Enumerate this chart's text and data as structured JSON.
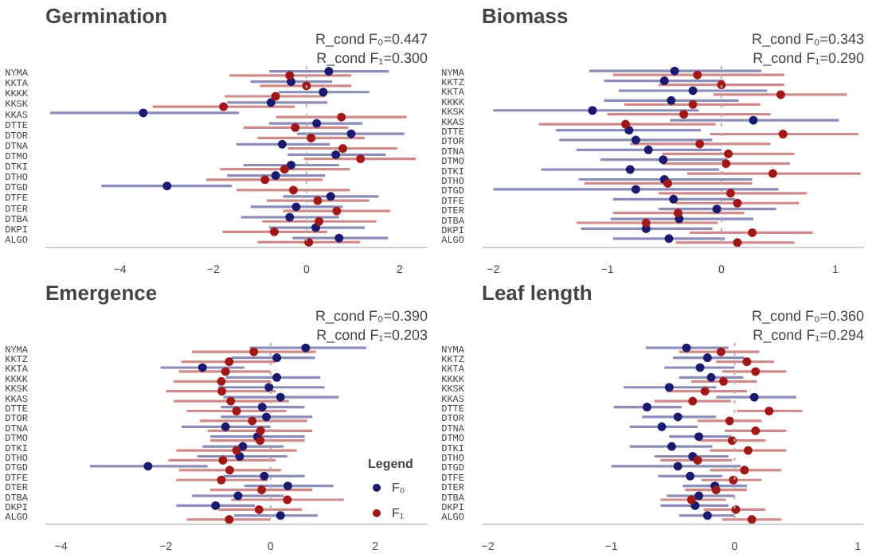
{
  "chart_data": [
    {
      "type": "scatter",
      "orientation": "horizontal",
      "title": "Germination",
      "annotations": [
        "R_cond F₀=0.447",
        "R_cond F₁=0.300"
      ],
      "categories": [
        "NYMA",
        "KKTA",
        "KKKK",
        "KKSK",
        "KKAS",
        "DTTE",
        "DTOR",
        "DTNA",
        "DTMO",
        "DTKI",
        "DTHO",
        "DTGD",
        "DTFE",
        "DTER",
        "DTBA",
        "DKPI",
        "ALGO"
      ],
      "xlim": [
        -5.6,
        2.6
      ],
      "xticks": [
        -4,
        -2,
        0,
        2
      ],
      "grid": false,
      "marker": "circle",
      "legend": false,
      "ref_lines": [
        {
          "axis": "x",
          "value": 0,
          "color": "#b0b0b0",
          "line_style": "dotted"
        }
      ],
      "series": [
        {
          "color": "#1a1a6e",
          "values": [
            0.48,
            -0.33,
            0.36,
            -0.76,
            -3.5,
            0.22,
            0.96,
            -0.52,
            0.63,
            -0.33,
            -0.66,
            -2.99,
            0.52,
            -0.22,
            -0.36,
            0.2,
            0.7
          ],
          "errors": [
            [
              -0.8,
              1.77
            ],
            [
              -1.2,
              0.55
            ],
            [
              -0.6,
              1.35
            ],
            [
              -1.7,
              0.45
            ],
            [
              -5.5,
              -1.45
            ],
            [
              -0.8,
              1.2
            ],
            [
              -0.2,
              2.1
            ],
            [
              -1.5,
              0.5
            ],
            [
              -0.4,
              1.7
            ],
            [
              -1.35,
              0.7
            ],
            [
              -1.7,
              0.4
            ],
            [
              -4.4,
              -1.6
            ],
            [
              -0.5,
              1.55
            ],
            [
              -1.2,
              0.78
            ],
            [
              -1.4,
              0.7
            ],
            [
              -0.8,
              1.25
            ],
            [
              -0.3,
              1.75
            ]
          ]
        },
        {
          "color": "#a01818",
          "values": [
            -0.36,
            0.0,
            -0.66,
            -1.78,
            0.75,
            -0.24,
            0.1,
            0.78,
            1.16,
            -0.47,
            -0.89,
            -0.28,
            0.24,
            0.65,
            0.27,
            -0.69,
            0.05
          ],
          "errors": [
            [
              -1.65,
              0.96
            ],
            [
              -1.0,
              0.96
            ],
            [
              -1.75,
              0.4
            ],
            [
              -3.3,
              -0.25
            ],
            [
              -0.65,
              2.15
            ],
            [
              -1.35,
              0.9
            ],
            [
              -1.05,
              1.25
            ],
            [
              -0.4,
              1.95
            ],
            [
              -0.05,
              2.35
            ],
            [
              -1.85,
              0.93
            ],
            [
              -2.15,
              0.35
            ],
            [
              -1.5,
              0.93
            ],
            [
              -0.85,
              1.35
            ],
            [
              -0.5,
              1.8
            ],
            [
              -0.95,
              1.5
            ],
            [
              -1.8,
              0.45
            ],
            [
              -1.05,
              1.15
            ]
          ]
        }
      ]
    },
    {
      "type": "scatter",
      "orientation": "horizontal",
      "title": "Biomass",
      "annotations": [
        "R_cond F₀=0.343",
        "R_cond F₁=0.290"
      ],
      "categories": [
        "NYMA",
        "KKTZ",
        "KKTA",
        "KKKK",
        "KKSK",
        "KKAS",
        "DTTE",
        "DTOR",
        "DTNA",
        "DTMO",
        "DTKI",
        "DTHO",
        "DTGD",
        "DTFE",
        "DTER",
        "DTBA",
        "DKPI",
        "ALGO"
      ],
      "xlim": [
        -2.1,
        1.25
      ],
      "xticks": [
        -2,
        -1,
        0,
        1
      ],
      "grid": false,
      "marker": "circle",
      "legend": false,
      "ref_lines": [
        {
          "axis": "x",
          "value": 0,
          "color": "#b0b0b0",
          "line_style": "dotted"
        }
      ],
      "series": [
        {
          "color": "#1a1a6e",
          "values": [
            -0.41,
            -0.5,
            -0.25,
            -0.44,
            -1.13,
            0.28,
            -0.81,
            -0.75,
            -0.64,
            -0.51,
            -0.8,
            -0.5,
            -0.75,
            -0.42,
            -0.04,
            -0.37,
            -0.66,
            -0.46
          ],
          "errors": [
            [
              -1.16,
              0.35
            ],
            [
              -1.03,
              0.02
            ],
            [
              -0.9,
              0.4
            ],
            [
              -1.03,
              0.15
            ],
            [
              -2.0,
              -0.2
            ],
            [
              -0.45,
              1.03
            ],
            [
              -1.45,
              -0.18
            ],
            [
              -1.42,
              -0.08
            ],
            [
              -1.27,
              0.0
            ],
            [
              -1.06,
              0.05
            ],
            [
              -1.58,
              -0.02
            ],
            [
              -1.25,
              0.27
            ],
            [
              -2.0,
              0.5
            ],
            [
              -0.95,
              0.12
            ],
            [
              -0.55,
              0.48
            ],
            [
              -0.97,
              0.28
            ],
            [
              -1.23,
              -0.08
            ],
            [
              -0.95,
              0.03
            ]
          ]
        },
        {
          "color": "#a01818",
          "values": [
            -0.21,
            0.0,
            0.52,
            -0.25,
            -0.33,
            -0.84,
            0.54,
            -0.19,
            0.06,
            0.04,
            0.45,
            -0.47,
            0.08,
            0.14,
            -0.38,
            -0.66,
            0.27,
            0.14
          ],
          "errors": [
            [
              -0.95,
              0.55
            ],
            [
              -0.55,
              0.55
            ],
            [
              -0.07,
              1.1
            ],
            [
              -0.85,
              0.34
            ],
            [
              -1.0,
              0.43
            ],
            [
              -1.6,
              -0.05
            ],
            [
              -0.1,
              1.2
            ],
            [
              -0.8,
              0.43
            ],
            [
              -0.52,
              0.64
            ],
            [
              -0.52,
              0.6
            ],
            [
              -0.3,
              1.22
            ],
            [
              -1.2,
              0.27
            ],
            [
              -0.55,
              0.75
            ],
            [
              -0.4,
              0.68
            ],
            [
              -0.95,
              0.2
            ],
            [
              -1.27,
              -0.03
            ],
            [
              -0.28,
              0.8
            ],
            [
              -0.4,
              0.64
            ]
          ]
        }
      ]
    },
    {
      "type": "scatter",
      "orientation": "horizontal",
      "title": "Emergence",
      "annotations": [
        "R_cond F₀=0.390",
        "R_cond F₁=0.203"
      ],
      "categories": [
        "NYMA",
        "KKTZ",
        "KKTA",
        "KKKK",
        "KKSK",
        "KKAS",
        "DTTE",
        "DTOR",
        "DTNA",
        "DTMO",
        "DTKI",
        "DTHO",
        "DTGD",
        "DTFE",
        "DTER",
        "DTBA",
        "DKPI",
        "ALGO"
      ],
      "xlim": [
        -4.3,
        3.0
      ],
      "xticks": [
        -4,
        -2,
        0,
        2
      ],
      "grid": false,
      "marker": "circle",
      "legend": "bottom right",
      "legend_title": "Legend",
      "ref_lines": [
        {
          "axis": "x",
          "value": 0,
          "color": "#b0b0b0",
          "line_style": "dotted"
        }
      ],
      "series": [
        {
          "name": "F₀",
          "color": "#1a1a6e",
          "values": [
            0.67,
            0.12,
            -1.3,
            0.12,
            -0.03,
            0.19,
            -0.16,
            -0.08,
            -0.86,
            -0.25,
            -0.53,
            -0.59,
            -2.34,
            -0.12,
            0.33,
            -0.62,
            -1.05,
            0.19
          ],
          "errors": [
            [
              -0.4,
              1.83
            ],
            [
              -0.75,
              0.85
            ],
            [
              -2.1,
              -0.5
            ],
            [
              -0.85,
              0.95
            ],
            [
              -1.0,
              1.03
            ],
            [
              -0.9,
              1.3
            ],
            [
              -0.95,
              0.65
            ],
            [
              -0.95,
              0.8
            ],
            [
              -1.7,
              0.0
            ],
            [
              -1.15,
              0.65
            ],
            [
              -1.3,
              0.25
            ],
            [
              -1.4,
              0.32
            ],
            [
              -3.45,
              -1.2
            ],
            [
              -0.9,
              0.65
            ],
            [
              -0.5,
              1.2
            ],
            [
              -1.5,
              0.25
            ],
            [
              -1.8,
              -0.3
            ],
            [
              -0.7,
              0.9
            ]
          ]
        },
        {
          "name": "F₁",
          "color": "#a01818",
          "values": [
            -0.32,
            -0.79,
            -0.86,
            -0.94,
            -0.93,
            -0.76,
            -0.65,
            -0.35,
            -0.19,
            -0.2,
            -0.65,
            -0.91,
            -0.78,
            -0.94,
            -0.17,
            0.32,
            -0.22,
            -0.79
          ],
          "errors": [
            [
              -1.5,
              0.87
            ],
            [
              -1.7,
              0.1
            ],
            [
              -1.75,
              0.0
            ],
            [
              -1.85,
              0.0
            ],
            [
              -2.0,
              0.1
            ],
            [
              -1.85,
              0.35
            ],
            [
              -1.6,
              0.3
            ],
            [
              -1.35,
              0.7
            ],
            [
              -1.2,
              0.8
            ],
            [
              -1.15,
              0.65
            ],
            [
              -1.8,
              0.5
            ],
            [
              -1.95,
              0.1
            ],
            [
              -1.75,
              0.2
            ],
            [
              -1.8,
              -0.05
            ],
            [
              -1.15,
              0.8
            ],
            [
              -0.75,
              1.4
            ],
            [
              -1.0,
              0.6
            ],
            [
              -1.6,
              0.0
            ]
          ]
        }
      ]
    },
    {
      "type": "scatter",
      "orientation": "horizontal",
      "title": "Leaf length",
      "annotations": [
        "R_cond F₀=0.360",
        "R_cond F₁=0.294"
      ],
      "categories": [
        "NYMA",
        "KKTZ",
        "KKTA",
        "KKKK",
        "KKSK",
        "KKAS",
        "DTTE",
        "DTOR",
        "DTNA",
        "DTMO",
        "DTKI",
        "DTHO",
        "DTGD",
        "DTFE",
        "DTER",
        "DTBA",
        "DKPI",
        "ALGO"
      ],
      "xlim": [
        -2.05,
        1.05
      ],
      "xticks": [
        -2,
        -1,
        0,
        1
      ],
      "grid": false,
      "marker": "circle",
      "legend": false,
      "ref_lines": [
        {
          "axis": "x",
          "value": 0,
          "color": "#b0b0b0",
          "line_style": "dotted"
        }
      ],
      "series": [
        {
          "color": "#1a1a6e",
          "values": [
            -0.39,
            -0.22,
            -0.28,
            -0.19,
            -0.53,
            0.16,
            -0.71,
            -0.46,
            -0.59,
            -0.29,
            -0.51,
            -0.34,
            -0.46,
            -0.36,
            -0.16,
            -0.29,
            -0.32,
            -0.22
          ],
          "errors": [
            [
              -0.72,
              -0.05
            ],
            [
              -0.5,
              0.08
            ],
            [
              -0.57,
              0.0
            ],
            [
              -0.45,
              0.07
            ],
            [
              -0.9,
              -0.15
            ],
            [
              -0.15,
              0.5
            ],
            [
              -0.98,
              -0.43
            ],
            [
              -0.75,
              -0.15
            ],
            [
              -0.85,
              -0.3
            ],
            [
              -0.53,
              -0.03
            ],
            [
              -0.85,
              -0.18
            ],
            [
              -0.65,
              -0.05
            ],
            [
              -1.0,
              0.05
            ],
            [
              -0.62,
              -0.1
            ],
            [
              -0.42,
              0.1
            ],
            [
              -0.55,
              0.0
            ],
            [
              -0.6,
              -0.05
            ],
            [
              -0.45,
              0.0
            ]
          ]
        },
        {
          "color": "#a01818",
          "values": [
            -0.11,
            0.1,
            0.17,
            -0.09,
            -0.24,
            -0.34,
            0.28,
            -0.04,
            0.17,
            -0.02,
            0.11,
            -0.3,
            0.08,
            -0.01,
            -0.15,
            -0.35,
            0.01,
            0.14
          ],
          "errors": [
            [
              -0.45,
              0.2
            ],
            [
              -0.15,
              0.32
            ],
            [
              -0.1,
              0.42
            ],
            [
              -0.35,
              0.18
            ],
            [
              -0.55,
              0.1
            ],
            [
              -0.65,
              -0.03
            ],
            [
              0.02,
              0.55
            ],
            [
              -0.3,
              0.22
            ],
            [
              -0.08,
              0.42
            ],
            [
              -0.28,
              0.25
            ],
            [
              -0.2,
              0.42
            ],
            [
              -0.6,
              -0.02
            ],
            [
              -0.2,
              0.38
            ],
            [
              -0.27,
              0.22
            ],
            [
              -0.4,
              0.1
            ],
            [
              -0.6,
              -0.07
            ],
            [
              -0.25,
              0.25
            ],
            [
              -0.1,
              0.38
            ]
          ]
        }
      ]
    }
  ]
}
